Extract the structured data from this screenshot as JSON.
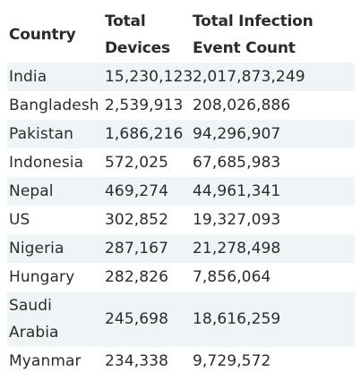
{
  "table": {
    "headers": {
      "country": "Country",
      "total_devices": "Total Devices",
      "total_infection_event_count": "Total Infection Event Count"
    },
    "rows": [
      {
        "country": "India",
        "total_devices": "15,230,123",
        "total_infection_event_count": "2,017,873,249"
      },
      {
        "country": "Bangladesh",
        "total_devices": "2,539,913",
        "total_infection_event_count": "208,026,886"
      },
      {
        "country": "Pakistan",
        "total_devices": "1,686,216",
        "total_infection_event_count": "94,296,907"
      },
      {
        "country": "Indonesia",
        "total_devices": "572,025",
        "total_infection_event_count": "67,685,983"
      },
      {
        "country": "Nepal",
        "total_devices": "469,274",
        "total_infection_event_count": "44,961,341"
      },
      {
        "country": "US",
        "total_devices": "302,852",
        "total_infection_event_count": "19,327,093"
      },
      {
        "country": "Nigeria",
        "total_devices": "287,167",
        "total_infection_event_count": "21,278,498"
      },
      {
        "country": "Hungary",
        "total_devices": "282,826",
        "total_infection_event_count": "7,856,064"
      },
      {
        "country": "Saudi Arabia",
        "total_devices": "245,698",
        "total_infection_event_count": "18,616,259"
      },
      {
        "country": "Myanmar",
        "total_devices": "234,338",
        "total_infection_event_count": "9,729,572"
      }
    ]
  },
  "colors": {
    "text": "#2b2b2b",
    "stripe": "#eff4f6",
    "background": "#ffffff"
  }
}
